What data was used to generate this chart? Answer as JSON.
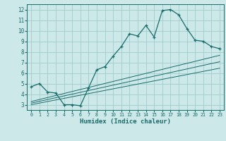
{
  "xlabel": "Humidex (Indice chaleur)",
  "ylabel": "",
  "bg_color": "#cce8e8",
  "grid_color": "#a0cccc",
  "line_color": "#1a6b6b",
  "x_data": [
    0,
    1,
    2,
    3,
    4,
    5,
    6,
    7,
    8,
    9,
    10,
    11,
    12,
    13,
    14,
    15,
    16,
    17,
    18,
    19,
    20,
    21,
    22,
    23
  ],
  "y_main": [
    4.7,
    5.0,
    4.2,
    4.1,
    3.0,
    3.0,
    2.9,
    4.6,
    6.3,
    6.6,
    7.6,
    8.5,
    9.7,
    9.5,
    10.5,
    9.4,
    11.9,
    12.0,
    11.5,
    10.2,
    9.1,
    9.0,
    8.5,
    8.3
  ],
  "y_trend1": [
    3.0,
    3.15,
    3.3,
    3.45,
    3.6,
    3.75,
    3.9,
    4.05,
    4.2,
    4.35,
    4.5,
    4.65,
    4.8,
    4.95,
    5.1,
    5.25,
    5.4,
    5.55,
    5.7,
    5.85,
    6.0,
    6.15,
    6.3,
    6.45
  ],
  "y_trend2": [
    3.15,
    3.32,
    3.49,
    3.66,
    3.83,
    4.0,
    4.17,
    4.34,
    4.51,
    4.68,
    4.85,
    5.02,
    5.19,
    5.36,
    5.53,
    5.7,
    5.87,
    6.04,
    6.21,
    6.38,
    6.55,
    6.72,
    6.89,
    7.06
  ],
  "y_trend3": [
    3.3,
    3.49,
    3.68,
    3.87,
    4.06,
    4.25,
    4.44,
    4.63,
    4.82,
    5.01,
    5.2,
    5.39,
    5.58,
    5.77,
    5.96,
    6.15,
    6.34,
    6.53,
    6.72,
    6.91,
    7.1,
    7.29,
    7.48,
    7.67
  ],
  "ylim": [
    2.5,
    12.5
  ],
  "xlim": [
    -0.5,
    23.5
  ],
  "yticks": [
    3,
    4,
    5,
    6,
    7,
    8,
    9,
    10,
    11,
    12
  ],
  "xticks": [
    0,
    1,
    2,
    3,
    4,
    5,
    6,
    7,
    8,
    9,
    10,
    11,
    12,
    13,
    14,
    15,
    16,
    17,
    18,
    19,
    20,
    21,
    22,
    23
  ]
}
